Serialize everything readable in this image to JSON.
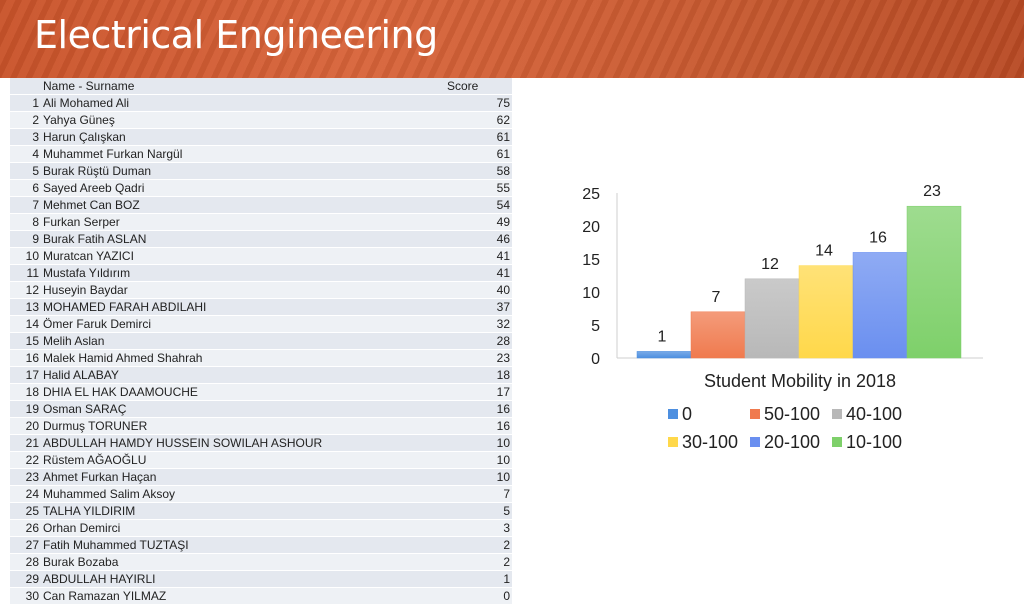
{
  "header": {
    "title": "Electrical Engineering"
  },
  "table": {
    "headers": {
      "name": "Name - Surname",
      "score": "Score"
    },
    "rows": [
      {
        "no": "1",
        "name": "Ali Mohamed Ali",
        "score": "75"
      },
      {
        "no": "2",
        "name": "Yahya Güneş",
        "score": "62"
      },
      {
        "no": "3",
        "name": "Harun Çalışkan",
        "score": "61"
      },
      {
        "no": "4",
        "name": "Muhammet Furkan Nargül",
        "score": "61"
      },
      {
        "no": "5",
        "name": "Burak Rüştü Duman",
        "score": "58"
      },
      {
        "no": "6",
        "name": "Sayed Areeb Qadri",
        "score": "55"
      },
      {
        "no": "7",
        "name": "Mehmet Can BOZ",
        "score": "54"
      },
      {
        "no": "8",
        "name": "Furkan Serper",
        "score": "49"
      },
      {
        "no": "9",
        "name": "Burak Fatih ASLAN",
        "score": "46"
      },
      {
        "no": "10",
        "name": "Muratcan YAZICI",
        "score": "41"
      },
      {
        "no": "11",
        "name": "Mustafa Yıldırım",
        "score": "41"
      },
      {
        "no": "12",
        "name": "Huseyin Baydar",
        "score": "40"
      },
      {
        "no": "13",
        "name": "MOHAMED FARAH ABDILAHI",
        "score": "37"
      },
      {
        "no": "14",
        "name": "Ömer Faruk Demirci",
        "score": "32"
      },
      {
        "no": "15",
        "name": "Melih Aslan",
        "score": "28"
      },
      {
        "no": "16",
        "name": "Malek Hamid Ahmed Shahrah",
        "score": "23"
      },
      {
        "no": "17",
        "name": "Halid ALABAY",
        "score": "18"
      },
      {
        "no": "18",
        "name": "DHIA EL HAK DAAMOUCHE",
        "score": "17"
      },
      {
        "no": "19",
        "name": "Osman SARAÇ",
        "score": "16"
      },
      {
        "no": "20",
        "name": "Durmuş TORUNER",
        "score": "16"
      },
      {
        "no": "21",
        "name": "ABDULLAH HAMDY HUSSEIN SOWILAH ASHOUR",
        "score": "10"
      },
      {
        "no": "22",
        "name": "Rüstem AĞAOĞLU",
        "score": "10"
      },
      {
        "no": "23",
        "name": "Ahmet Furkan Haçan",
        "score": "10"
      },
      {
        "no": "24",
        "name": "Muhammed Salim Aksoy",
        "score": "7"
      },
      {
        "no": "25",
        "name": "TALHA YILDIRIM",
        "score": "5"
      },
      {
        "no": "26",
        "name": "Orhan Demirci",
        "score": "3"
      },
      {
        "no": "27",
        "name": "Fatih Muhammed TUZTAŞI",
        "score": "2"
      },
      {
        "no": "28",
        "name": "Burak Bozaba",
        "score": "2"
      },
      {
        "no": "29",
        "name": "ABDULLAH HAYIRLI",
        "score": "1"
      },
      {
        "no": "30",
        "name": "Can Ramazan YILMAZ",
        "score": "0"
      }
    ]
  },
  "chart_data": {
    "type": "bar",
    "title": "Student Mobility in 2018",
    "categories": [
      "0",
      "50-100",
      "40-100",
      "30-100",
      "20-100",
      "10-100"
    ],
    "values": [
      1,
      7,
      12,
      14,
      16,
      23
    ],
    "colors": [
      "#4d8fe0",
      "#f07a4e",
      "#b8b8b8",
      "#ffd84a",
      "#6a8ff0",
      "#7ed06a"
    ],
    "ylim": [
      0,
      25
    ],
    "yticks": [
      "0",
      "5",
      "10",
      "15",
      "20",
      "25"
    ],
    "legend_position": "bottom",
    "xlabel": "",
    "ylabel": ""
  }
}
